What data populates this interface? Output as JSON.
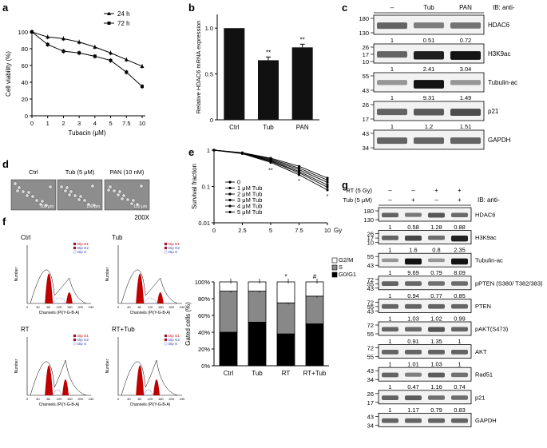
{
  "panel_labels": {
    "a": "a",
    "b": "b",
    "c": "c",
    "d": "d",
    "e": "e",
    "f": "f",
    "g": "g"
  },
  "chart_data": [
    {
      "id": "a",
      "type": "line",
      "ylabel": "Cell viability (%)",
      "xlabel": "Tubacin (μM)",
      "x": [
        "0",
        "1",
        "2",
        "3",
        "4",
        "5",
        "7.5",
        "10"
      ],
      "yticks": [
        "0",
        "20",
        "40",
        "60",
        "80",
        "100"
      ],
      "ylim": [
        0,
        100
      ],
      "series": [
        {
          "name": "24 h",
          "values": [
            100,
            94,
            92,
            88,
            82,
            75,
            67,
            59
          ],
          "marker": "triangle"
        },
        {
          "name": "72 h",
          "values": [
            100,
            85,
            77,
            75,
            71,
            66,
            52,
            35
          ],
          "marker": "square"
        }
      ]
    },
    {
      "id": "b",
      "type": "bar",
      "ylabel": "Relative HDAC6 mRNA expression",
      "categories": [
        "Ctrl",
        "Tub",
        "PAN"
      ],
      "values": [
        1.0,
        0.65,
        0.79
      ],
      "yticks": [
        "0",
        "0.5",
        "1.0"
      ],
      "ylim": [
        0,
        1.15
      ],
      "annotations": [
        "",
        "**",
        "**"
      ]
    },
    {
      "id": "e",
      "type": "line",
      "ylabel": "Survival fraction",
      "xlabel": "Gy",
      "x": [
        "0",
        "2.5",
        "5",
        "7.5",
        "10"
      ],
      "yticks": [
        "1",
        "0.1",
        "0.01"
      ],
      "series": [
        {
          "name": "0",
          "values": [
            1,
            0.85,
            0.6,
            0.36,
            0.17
          ]
        },
        {
          "name": "1 μM Tub",
          "values": [
            1,
            0.84,
            0.57,
            0.32,
            0.15
          ]
        },
        {
          "name": "2 μM Tub",
          "values": [
            1,
            0.83,
            0.54,
            0.29,
            0.13
          ]
        },
        {
          "name": "3 μM Tub",
          "values": [
            1,
            0.82,
            0.51,
            0.26,
            0.11
          ]
        },
        {
          "name": "4 μM Tub",
          "values": [
            1,
            0.81,
            0.49,
            0.24,
            0.095
          ]
        },
        {
          "name": "5 μM Tub",
          "values": [
            1,
            0.8,
            0.46,
            0.21,
            0.08
          ]
        }
      ],
      "annotations": [
        "**",
        "*",
        "*"
      ]
    },
    {
      "id": "e2",
      "type": "bar",
      "ylabel": "Gated cells (%)",
      "categories": [
        "Ctrl",
        "Tub",
        "RT",
        "RT+Tub"
      ],
      "yticks": [
        "0%",
        "20%",
        "40%",
        "60%",
        "80%",
        "100%"
      ],
      "series": [
        {
          "name": "G0/G1",
          "values": [
            40,
            52,
            38,
            50
          ]
        },
        {
          "name": "S",
          "values": [
            49,
            37,
            37,
            33
          ]
        },
        {
          "name": "G2/M",
          "values": [
            11,
            11,
            25,
            17
          ]
        }
      ],
      "annotations": [
        "*",
        "#"
      ]
    }
  ],
  "panel_c": {
    "header": [
      "–",
      "Tub",
      "PAN"
    ],
    "ib": "IB: anti-",
    "blots": [
      {
        "name": "HDAC6",
        "mw": [
          "180",
          "130"
        ],
        "values": [
          "1",
          "0.51",
          "0.72"
        ]
      },
      {
        "name": "H3K9ac",
        "mw": [
          "26",
          "17",
          "10"
        ],
        "values": [
          "1",
          "2.41",
          "3.04"
        ]
      },
      {
        "name": "Tubulin-ac",
        "mw": [
          "55",
          "43"
        ],
        "values": [
          "1",
          "9.31",
          "1.49"
        ]
      },
      {
        "name": "p21",
        "mw": [
          "26",
          "17"
        ],
        "values": [
          "1",
          "1.2",
          "1.51"
        ]
      },
      {
        "name": "GAPDH",
        "mw": [
          "43",
          "34"
        ],
        "values": []
      }
    ]
  },
  "panel_d": {
    "labels": [
      "Ctrl",
      "Tub (5 μM)",
      "PAN (10 nM)"
    ],
    "scale": "100 μm",
    "mag": "200X"
  },
  "panel_f": {
    "titles": [
      "Ctrl",
      "Tub",
      "RT",
      "RT+Tub"
    ],
    "xlabel": "Channels (PI(Y-G-B-A)",
    "ylabel": "Number",
    "legend": [
      "Dip G1",
      "Dip G2",
      "Dip S"
    ],
    "xticks": [
      "0",
      "40",
      "80",
      "120",
      "160",
      "200",
      "240"
    ]
  },
  "panel_g": {
    "rt_label": "RT (5 Gy)",
    "tub_label": "Tub (5 μM)",
    "rt_signs": [
      "–",
      "–",
      "+",
      "+"
    ],
    "tub_signs": [
      "–",
      "+",
      "–",
      "+"
    ],
    "ib": "IB: anti-",
    "blots": [
      {
        "name": "HDAC6",
        "mw": [
          "180",
          "130"
        ],
        "values": [
          "1",
          "0.58",
          "1.28",
          "0.88"
        ]
      },
      {
        "name": "H3K9ac",
        "mw": [
          "26",
          "17",
          "10"
        ],
        "values": [
          "1",
          "1.6",
          "0.8",
          "2.35"
        ]
      },
      {
        "name": "Tubulin-ac",
        "mw": [
          "55",
          "43"
        ],
        "values": [
          "1",
          "9.69",
          "0.79",
          "8.09"
        ]
      },
      {
        "name": "pPTEN (S380/ T382/383)",
        "mw": [
          "72",
          "55",
          "43"
        ],
        "values": [
          "1",
          "0.94",
          "0.77",
          "0.85"
        ]
      },
      {
        "name": "PTEN",
        "mw": [
          "72",
          "55",
          "43"
        ],
        "values": [
          "1",
          "1.03",
          "1.02",
          "0.99"
        ]
      },
      {
        "name": "pAKT(S473)",
        "mw": [
          "72",
          "55"
        ],
        "values": [
          "1",
          "0.91",
          "1.35",
          "1"
        ]
      },
      {
        "name": "AKT",
        "mw": [
          "72",
          "55"
        ],
        "values": [
          "1",
          "1.01",
          "1.03",
          "1"
        ]
      },
      {
        "name": "Rad51",
        "mw": [
          "43",
          "34"
        ],
        "values": [
          "1",
          "0.47",
          "1.16",
          "0.74"
        ]
      },
      {
        "name": "p21",
        "mw": [
          "26",
          "17"
        ],
        "values": [
          "1",
          "1.17",
          "0.79",
          "0.83"
        ]
      },
      {
        "name": "GAPDH",
        "mw": [
          "43",
          "34"
        ],
        "values": []
      }
    ]
  }
}
